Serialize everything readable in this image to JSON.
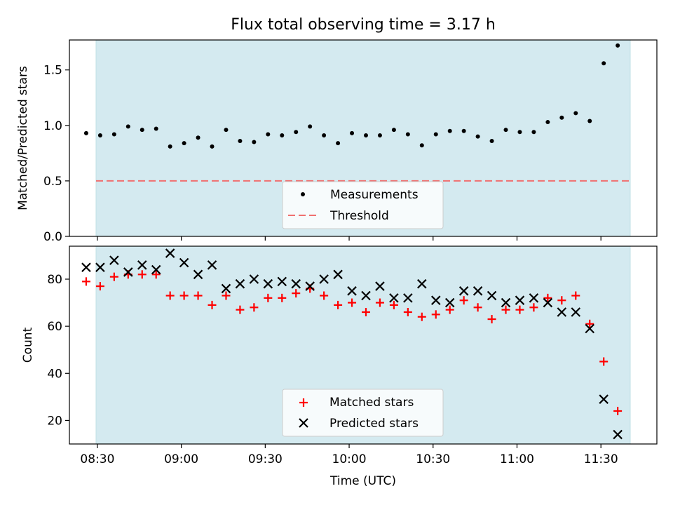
{
  "chart_data": [
    {
      "type": "scatter",
      "title": "Flux total observing time = 3.17 h",
      "xlabel": "",
      "ylabel": "Matched/Predicted stars",
      "ylim": [
        0,
        1.77
      ],
      "yticks": [
        "0.0",
        "0.5",
        "1.0",
        "1.5"
      ],
      "ytick_values": [
        0,
        0.5,
        1.0,
        1.5
      ],
      "series": [
        {
          "name": "Measurements",
          "marker": "dot",
          "color": "#000000",
          "x": [
            "08:26",
            "08:31",
            "08:36",
            "08:41",
            "08:46",
            "08:51",
            "08:56",
            "09:01",
            "09:06",
            "09:11",
            "09:16",
            "09:21",
            "09:26",
            "09:31",
            "09:36",
            "09:41",
            "09:46",
            "09:51",
            "09:56",
            "10:01",
            "10:06",
            "10:11",
            "10:16",
            "10:21",
            "10:26",
            "10:31",
            "10:36",
            "10:41",
            "10:46",
            "10:51",
            "10:56",
            "11:01",
            "11:06",
            "11:11",
            "11:16",
            "11:21",
            "11:26",
            "11:31",
            "11:36"
          ],
          "y": [
            0.93,
            0.91,
            0.92,
            0.99,
            0.96,
            0.97,
            0.81,
            0.84,
            0.89,
            0.81,
            0.96,
            0.86,
            0.85,
            0.92,
            0.91,
            0.94,
            0.99,
            0.91,
            0.84,
            0.93,
            0.91,
            0.91,
            0.96,
            0.92,
            0.82,
            0.92,
            0.95,
            0.95,
            0.9,
            0.86,
            0.96,
            0.94,
            0.94,
            1.03,
            1.07,
            1.11,
            1.04,
            1.56,
            1.72
          ]
        }
      ],
      "threshold": {
        "name": "Threshold",
        "value": 0.5,
        "color": "#f07070"
      },
      "legend_position": "lower center",
      "band_color": "#d4eaf0"
    },
    {
      "type": "scatter",
      "title": "",
      "xlabel": "Time (UTC)",
      "ylabel": "Count",
      "ylim": [
        10,
        94
      ],
      "yticks": [
        "20",
        "40",
        "60",
        "80"
      ],
      "ytick_values": [
        20,
        40,
        60,
        80
      ],
      "xticks": [
        "08:30",
        "09:00",
        "09:30",
        "10:00",
        "10:30",
        "11:00",
        "11:30"
      ],
      "xtick_values": [
        "08:30",
        "09:00",
        "09:30",
        "10:00",
        "10:30",
        "11:00",
        "11:30"
      ],
      "x": [
        "08:26",
        "08:31",
        "08:36",
        "08:41",
        "08:46",
        "08:51",
        "08:56",
        "09:01",
        "09:06",
        "09:11",
        "09:16",
        "09:21",
        "09:26",
        "09:31",
        "09:36",
        "09:41",
        "09:46",
        "09:51",
        "09:56",
        "10:01",
        "10:06",
        "10:11",
        "10:16",
        "10:21",
        "10:26",
        "10:31",
        "10:36",
        "10:41",
        "10:46",
        "10:51",
        "10:56",
        "11:01",
        "11:06",
        "11:11",
        "11:16",
        "11:21",
        "11:26",
        "11:31",
        "11:36"
      ],
      "series": [
        {
          "name": "Matched stars",
          "marker": "plus",
          "color": "#ff0000",
          "values": [
            79,
            77,
            81,
            82,
            82,
            82,
            73,
            73,
            73,
            69,
            73,
            67,
            68,
            72,
            72,
            74,
            76,
            73,
            69,
            70,
            66,
            70,
            69,
            66,
            64,
            65,
            67,
            71,
            68,
            63,
            67,
            67,
            68,
            72,
            71,
            73,
            61,
            45,
            24
          ]
        },
        {
          "name": "Predicted stars",
          "marker": "x",
          "color": "#000000",
          "values": [
            85,
            85,
            88,
            83,
            86,
            84,
            91,
            87,
            82,
            86,
            76,
            78,
            80,
            78,
            79,
            78,
            77,
            80,
            82,
            75,
            73,
            77,
            72,
            72,
            78,
            71,
            70,
            75,
            75,
            73,
            70,
            71,
            72,
            70,
            66,
            66,
            59,
            29,
            14
          ]
        }
      ],
      "legend_position": "lower center",
      "band_color": "#d4eaf0"
    }
  ],
  "x_range": [
    "08:20",
    "11:50"
  ]
}
